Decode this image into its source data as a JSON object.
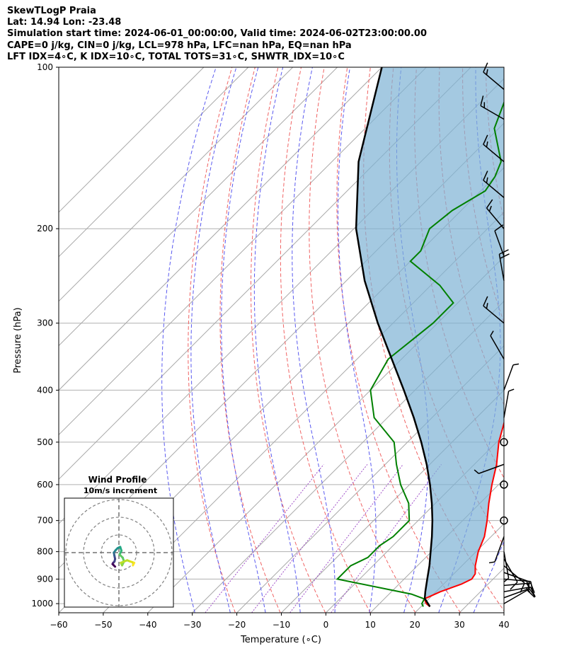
{
  "header": {
    "line1": "SkewTLogP Praia",
    "line2": "Lat: 14.94   Lon: -23.48",
    "line3": "Simulation start time: 2024-06-01_00:00:00, Valid time: 2024-06-02T23:00:00.00",
    "line4": "CAPE=0 j/kg, CIN=0 j/kg, LCL=978 hPa, LFC=nan hPa, EQ=nan hPa",
    "line5": "LFT IDX=4∘C, K IDX=10∘C, TOTAL TOTS=31∘C, SHWTR_IDX=10∘C"
  },
  "chart_data": {
    "type": "line",
    "subtype": "skew-t log-p",
    "xlabel": "Temperature (∘C)",
    "ylabel": "Pressure (hPa)",
    "xlim": [
      -60,
      40
    ],
    "ylim": [
      1040,
      100
    ],
    "x_ticks": [
      -60,
      -50,
      -40,
      -30,
      -20,
      -10,
      0,
      10,
      20,
      30,
      40
    ],
    "x_tick_labels": [
      "−60",
      "−50",
      "−40",
      "−30",
      "−20",
      "−10",
      "0",
      "10",
      "20",
      "30",
      "40"
    ],
    "y_ticks": [
      1000,
      900,
      800,
      700,
      600,
      500,
      400,
      300,
      200,
      100
    ],
    "grid": true,
    "series": [
      {
        "name": "temperature",
        "color": "#ff0000",
        "points": [
          [
            1013,
            22
          ],
          [
            1000,
            20.5
          ],
          [
            980,
            19
          ],
          [
            950,
            21
          ],
          [
            920,
            24
          ],
          [
            900,
            25.2
          ],
          [
            880,
            24.8
          ],
          [
            850,
            23
          ],
          [
            800,
            20.5
          ],
          [
            750,
            18.5
          ],
          [
            700,
            15.5
          ],
          [
            650,
            12
          ],
          [
            600,
            8.5
          ],
          [
            550,
            5
          ],
          [
            500,
            0.5
          ],
          [
            450,
            -3.5
          ],
          [
            400,
            -7
          ],
          [
            350,
            -12
          ],
          [
            325,
            -15
          ],
          [
            300,
            -18.5
          ],
          [
            275,
            -22.5
          ],
          [
            250,
            -27
          ],
          [
            225,
            -31.5
          ],
          [
            200,
            -37
          ],
          [
            175,
            -42.5
          ],
          [
            150,
            -49.5
          ],
          [
            125,
            -58
          ],
          [
            110,
            -63
          ],
          [
            100,
            -67
          ]
        ]
      },
      {
        "name": "dewpoint",
        "color": "#008000",
        "points": [
          [
            1013,
            20.5
          ],
          [
            1000,
            19.5
          ],
          [
            980,
            19
          ],
          [
            960,
            15
          ],
          [
            900,
            -5
          ],
          [
            850,
            -5
          ],
          [
            820,
            -3
          ],
          [
            780,
            -3
          ],
          [
            750,
            -2
          ],
          [
            700,
            -2
          ],
          [
            650,
            -6
          ],
          [
            600,
            -12
          ],
          [
            550,
            -17.5
          ],
          [
            500,
            -23
          ],
          [
            450,
            -33
          ],
          [
            400,
            -40
          ],
          [
            350,
            -43
          ],
          [
            300,
            -41
          ],
          [
            275,
            -41
          ],
          [
            255,
            -48
          ],
          [
            230,
            -60
          ],
          [
            220,
            -60
          ],
          [
            200,
            -63
          ],
          [
            185,
            -62
          ],
          [
            170,
            -59
          ],
          [
            160,
            -60
          ],
          [
            150,
            -62
          ],
          [
            130,
            -71
          ],
          [
            115,
            -75
          ],
          [
            100,
            -80
          ]
        ]
      },
      {
        "name": "parcel",
        "color": "#000000",
        "points": [
          [
            1013,
            22
          ],
          [
            978,
            19
          ],
          [
            950,
            17.6
          ],
          [
            900,
            15.2
          ],
          [
            850,
            12.7
          ],
          [
            800,
            9.8
          ],
          [
            750,
            6.7
          ],
          [
            700,
            3.2
          ],
          [
            650,
            -0.8
          ],
          [
            600,
            -5.4
          ],
          [
            550,
            -10.7
          ],
          [
            500,
            -16.9
          ],
          [
            450,
            -24.1
          ],
          [
            400,
            -32.5
          ],
          [
            350,
            -42.2
          ],
          [
            300,
            -53.4
          ],
          [
            250,
            -65.9
          ],
          [
            200,
            -79.5
          ],
          [
            150,
            -94
          ],
          [
            100,
            -110
          ]
        ]
      }
    ],
    "cape_fill_color": "#7eb2d4"
  },
  "hodograph": {
    "title": "Wind Profile",
    "subtitle": "10m/s increment"
  },
  "wind_barbs": {
    "note": "barbs along right axis at 40∘C",
    "levels": [
      {
        "p": 1000,
        "speed": 10,
        "dir": 60
      },
      {
        "p": 975,
        "speed": 10,
        "dir": 70
      },
      {
        "p": 950,
        "speed": 15,
        "dir": 80
      },
      {
        "p": 925,
        "speed": 15,
        "dir": 85
      },
      {
        "p": 900,
        "speed": 15,
        "dir": 95
      },
      {
        "p": 875,
        "speed": 10,
        "dir": 110
      },
      {
        "p": 850,
        "speed": 10,
        "dir": 130
      },
      {
        "p": 825,
        "speed": 10,
        "dir": 150
      },
      {
        "p": 800,
        "speed": 5,
        "dir": 170
      },
      {
        "p": 750,
        "speed": 5,
        "dir": 200
      },
      {
        "p": 700,
        "speed": 0,
        "dir": 0
      },
      {
        "p": 600,
        "speed": 0,
        "dir": 0
      },
      {
        "p": 550,
        "speed": 5,
        "dir": 250
      },
      {
        "p": 500,
        "speed": 0,
        "dir": 0
      },
      {
        "p": 450,
        "speed": 5,
        "dir": 10
      },
      {
        "p": 400,
        "speed": 5,
        "dir": 20
      },
      {
        "p": 350,
        "speed": 5,
        "dir": 330
      },
      {
        "p": 300,
        "speed": 15,
        "dir": 310
      },
      {
        "p": 250,
        "speed": 20,
        "dir": 350
      },
      {
        "p": 225,
        "speed": 10,
        "dir": 340
      },
      {
        "p": 200,
        "speed": 15,
        "dir": 320
      },
      {
        "p": 175,
        "speed": 15,
        "dir": 310
      },
      {
        "p": 150,
        "speed": 15,
        "dir": 310
      },
      {
        "p": 125,
        "speed": 15,
        "dir": 300
      },
      {
        "p": 110,
        "speed": 15,
        "dir": 310
      }
    ]
  }
}
